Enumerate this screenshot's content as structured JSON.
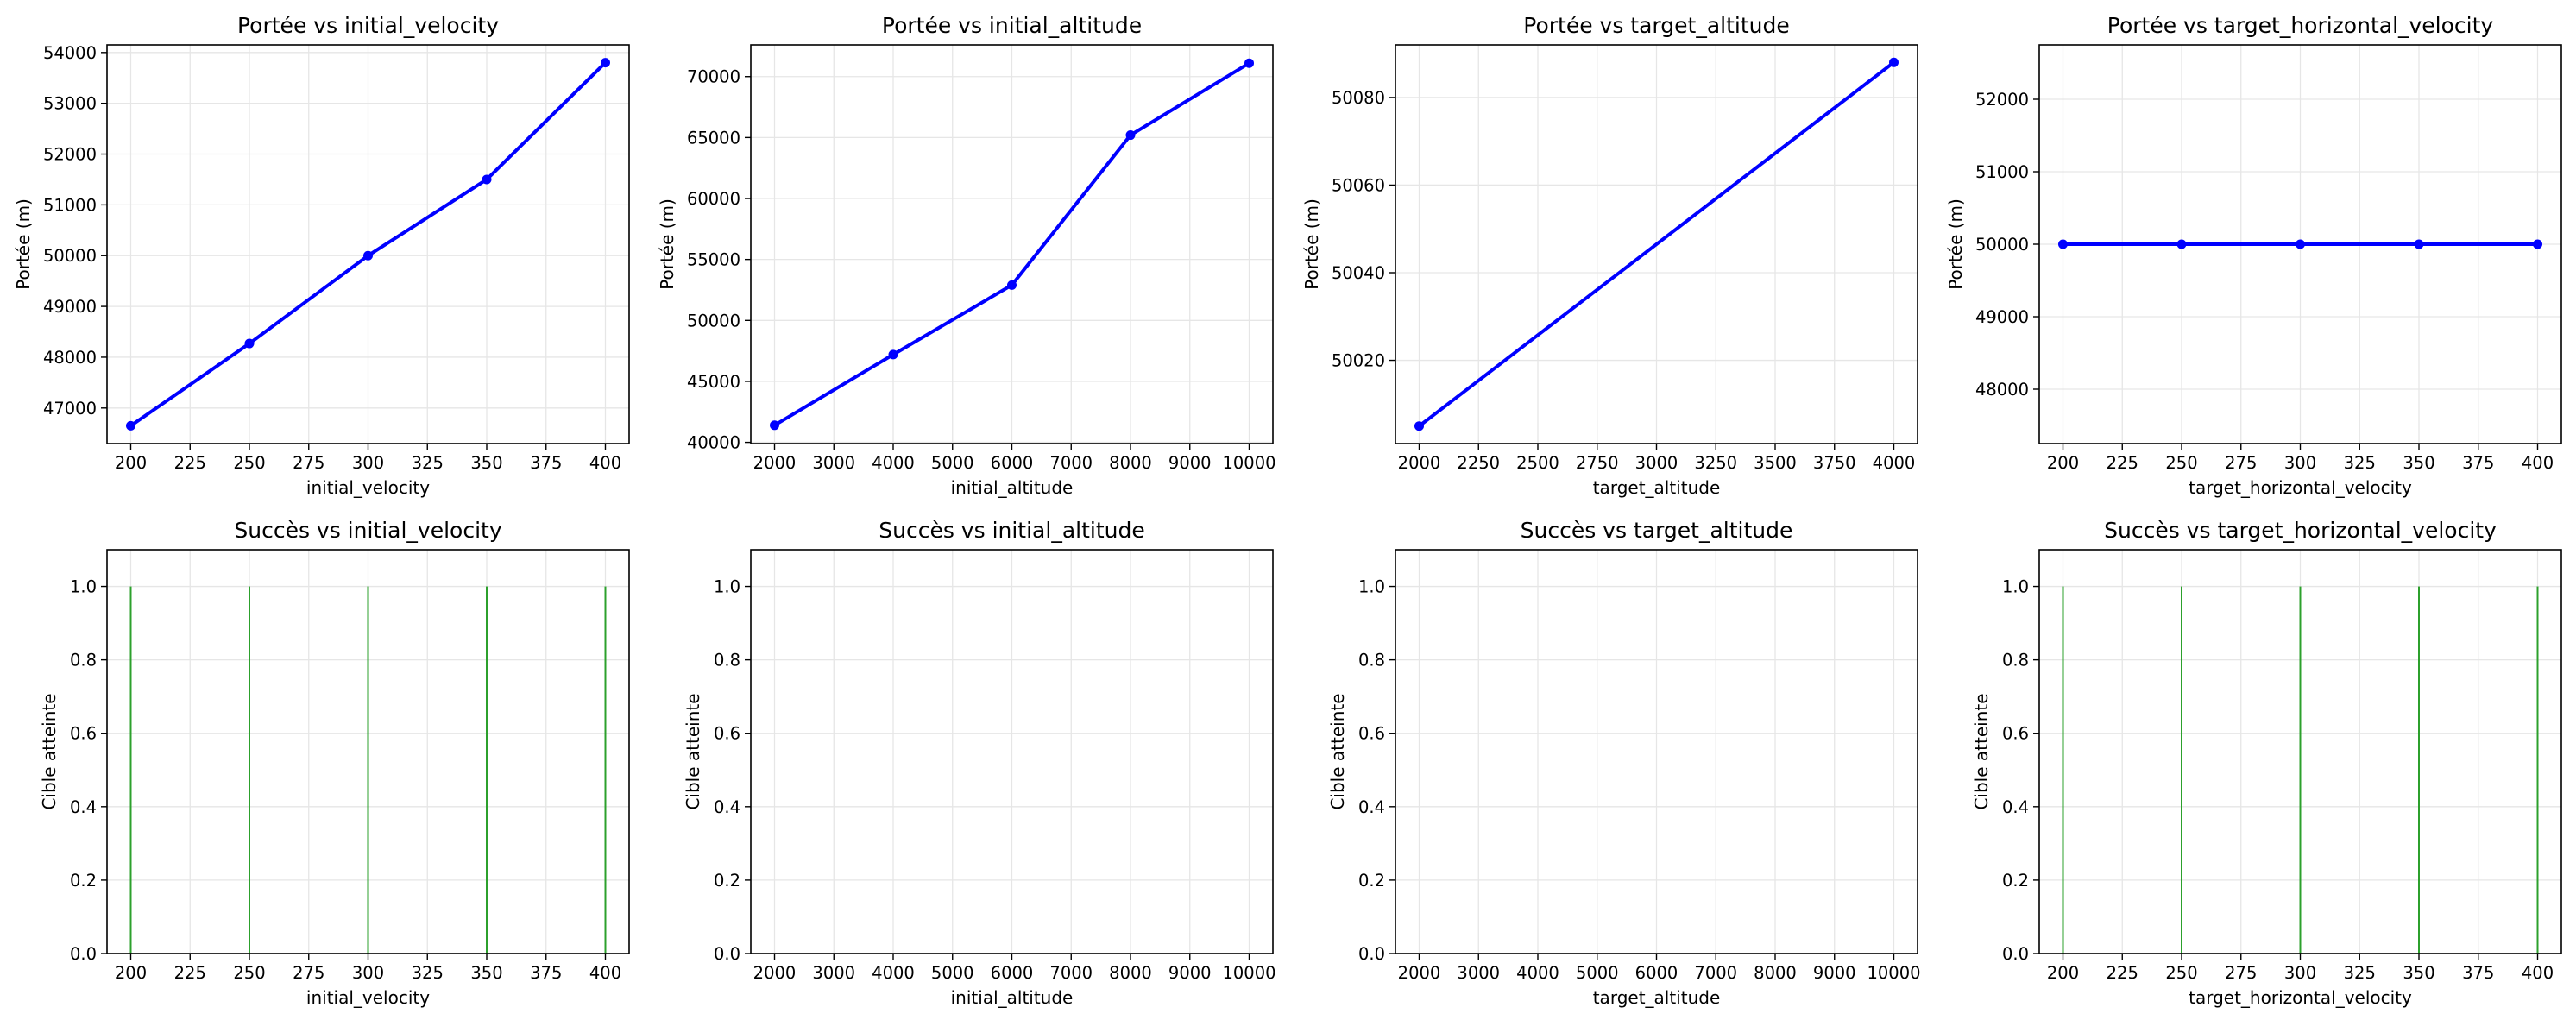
{
  "colors": {
    "line": "#0000ff",
    "stem": "#2ca02c",
    "grid": "#e6e6e6"
  },
  "chart_data": [
    {
      "type": "line",
      "title": "Portée vs initial_velocity",
      "xlabel": "initial_velocity",
      "ylabel": "Portée (m)",
      "x": [
        200,
        250,
        300,
        350,
        400
      ],
      "y": [
        46650,
        48270,
        50000,
        51500,
        53800
      ],
      "xlim": [
        190,
        410
      ],
      "ylim": [
        46300,
        54150
      ],
      "xticks": [
        200,
        225,
        250,
        275,
        300,
        325,
        350,
        375,
        400
      ],
      "yticks": [
        47000,
        48000,
        49000,
        50000,
        51000,
        52000,
        53000,
        54000
      ],
      "grid": true
    },
    {
      "type": "line",
      "title": "Portée vs initial_altitude",
      "xlabel": "initial_altitude",
      "ylabel": "Portée (m)",
      "x": [
        2000,
        4000,
        6000,
        8000,
        10000
      ],
      "y": [
        41400,
        47200,
        52900,
        65200,
        71100
      ],
      "xlim": [
        1600,
        10400
      ],
      "ylim": [
        39900,
        72600
      ],
      "xticks": [
        2000,
        3000,
        4000,
        5000,
        6000,
        7000,
        8000,
        9000,
        10000
      ],
      "yticks": [
        40000,
        45000,
        50000,
        55000,
        60000,
        65000,
        70000
      ],
      "grid": true
    },
    {
      "type": "line",
      "title": "Portée vs target_altitude",
      "xlabel": "target_altitude",
      "ylabel": "Portée (m)",
      "x": [
        2000,
        4000
      ],
      "y": [
        50005,
        50088
      ],
      "xlim": [
        1900,
        4100
      ],
      "ylim": [
        50001,
        50092
      ],
      "xticks": [
        2000,
        2250,
        2500,
        2750,
        3000,
        3250,
        3500,
        3750,
        4000
      ],
      "yticks": [
        50020,
        50040,
        50060,
        50080
      ],
      "grid": true
    },
    {
      "type": "line",
      "title": "Portée vs target_horizontal_velocity",
      "xlabel": "target_horizontal_velocity",
      "ylabel": "Portée (m)",
      "x": [
        200,
        250,
        300,
        350,
        400
      ],
      "y": [
        50000,
        50000,
        50000,
        50000,
        50000
      ],
      "xlim": [
        190,
        410
      ],
      "ylim": [
        47250,
        52750
      ],
      "xticks": [
        200,
        225,
        250,
        275,
        300,
        325,
        350,
        375,
        400
      ],
      "yticks": [
        48000,
        49000,
        50000,
        51000,
        52000
      ],
      "grid": true
    },
    {
      "type": "bar",
      "title": "Succès vs initial_velocity",
      "xlabel": "initial_velocity",
      "ylabel": "Cible atteinte",
      "x": [
        200,
        250,
        300,
        350,
        400
      ],
      "y": [
        1,
        1,
        1,
        1,
        1
      ],
      "xlim": [
        190,
        410
      ],
      "ylim": [
        0,
        1.1
      ],
      "xticks": [
        200,
        225,
        250,
        275,
        300,
        325,
        350,
        375,
        400
      ],
      "yticks": [
        0.0,
        0.2,
        0.4,
        0.6,
        0.8,
        1.0
      ],
      "grid": true
    },
    {
      "type": "bar",
      "title": "Succès vs initial_altitude",
      "xlabel": "initial_altitude",
      "ylabel": "Cible atteinte",
      "x": [
        2000,
        4000,
        6000,
        8000,
        10000
      ],
      "y": [
        0,
        0,
        0,
        0,
        0
      ],
      "xlim": [
        1600,
        10400
      ],
      "ylim": [
        0,
        1.1
      ],
      "xticks": [
        2000,
        3000,
        4000,
        5000,
        6000,
        7000,
        8000,
        9000,
        10000
      ],
      "yticks": [
        0.0,
        0.2,
        0.4,
        0.6,
        0.8,
        1.0
      ],
      "grid": true
    },
    {
      "type": "bar",
      "title": "Succès vs target_altitude",
      "xlabel": "target_altitude",
      "ylabel": "Cible atteinte",
      "x": [
        2000,
        4000,
        6000,
        8000,
        10000
      ],
      "y": [
        0,
        0,
        0,
        0,
        0
      ],
      "xlim": [
        1600,
        10400
      ],
      "ylim": [
        0,
        1.1
      ],
      "xticks": [
        2000,
        3000,
        4000,
        5000,
        6000,
        7000,
        8000,
        9000,
        10000
      ],
      "yticks": [
        0.0,
        0.2,
        0.4,
        0.6,
        0.8,
        1.0
      ],
      "grid": true
    },
    {
      "type": "bar",
      "title": "Succès vs target_horizontal_velocity",
      "xlabel": "target_horizontal_velocity",
      "ylabel": "Cible atteinte",
      "x": [
        200,
        250,
        300,
        350,
        400
      ],
      "y": [
        1,
        1,
        1,
        1,
        1
      ],
      "xlim": [
        190,
        410
      ],
      "ylim": [
        0,
        1.1
      ],
      "xticks": [
        200,
        225,
        250,
        275,
        300,
        325,
        350,
        375,
        400
      ],
      "yticks": [
        0.0,
        0.2,
        0.4,
        0.6,
        0.8,
        1.0
      ],
      "grid": true
    }
  ]
}
